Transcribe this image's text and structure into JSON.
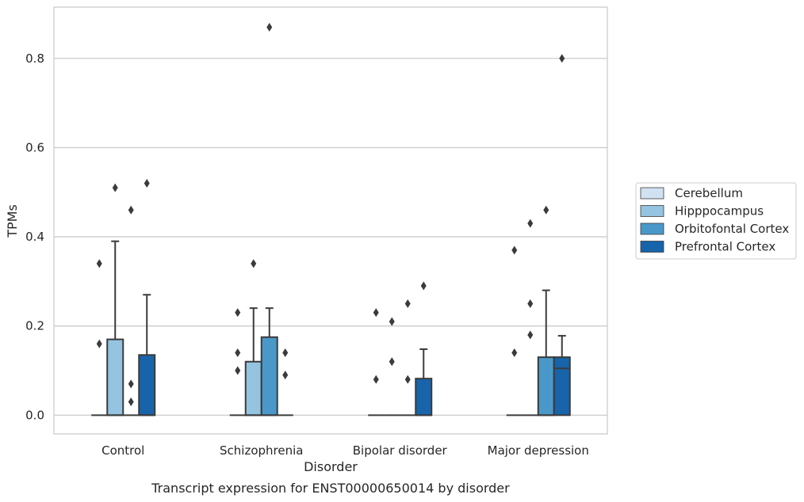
{
  "chart_data": {
    "type": "box",
    "caption": "Transcript expression for ENST00000650014 by disorder",
    "xlabel": "Disorder",
    "ylabel": "TPMs",
    "ylim": [
      -0.042,
      0.915
    ],
    "yticks": [
      "0.0",
      "0.2",
      "0.4",
      "0.6",
      "0.8"
    ],
    "ytick_values": [
      0.0,
      0.2,
      0.4,
      0.6,
      0.8
    ],
    "grid": "horizontal",
    "legend_position": "right",
    "categories": [
      "Control",
      "Schizophrenia",
      "Bipolar disorder",
      "Major depression"
    ],
    "series": [
      {
        "name": "Cerebellum",
        "color": "#d0e1f2",
        "boxes": [
          {
            "q1": 0,
            "median": 0,
            "q3": 0,
            "whisker_low": 0,
            "whisker_high": 0,
            "outliers": [
              0.16,
              0.34
            ]
          },
          {
            "q1": 0,
            "median": 0,
            "q3": 0,
            "whisker_low": 0,
            "whisker_high": 0,
            "outliers": [
              0.1,
              0.14,
              0.23
            ]
          },
          {
            "q1": 0,
            "median": 0,
            "q3": 0,
            "whisker_low": 0,
            "whisker_high": 0,
            "outliers": [
              0.08,
              0.23
            ]
          },
          {
            "q1": 0,
            "median": 0,
            "q3": 0,
            "whisker_low": 0,
            "whisker_high": 0,
            "outliers": [
              0.14,
              0.37
            ]
          }
        ]
      },
      {
        "name": "Hipppocampus",
        "color": "#94c4df",
        "boxes": [
          {
            "q1": 0,
            "median": 0,
            "q3": 0.17,
            "whisker_low": 0,
            "whisker_high": 0.39,
            "outliers": [
              0.51
            ]
          },
          {
            "q1": 0,
            "median": 0,
            "q3": 0.12,
            "whisker_low": 0,
            "whisker_high": 0.24,
            "outliers": [
              0.34
            ]
          },
          {
            "q1": 0,
            "median": 0,
            "q3": 0,
            "whisker_low": 0,
            "whisker_high": 0,
            "outliers": [
              0.12,
              0.21
            ]
          },
          {
            "q1": 0,
            "median": 0,
            "q3": 0,
            "whisker_low": 0,
            "whisker_high": 0,
            "outliers": [
              0.18,
              0.25,
              0.43
            ]
          }
        ]
      },
      {
        "name": "Orbitofontal Cortex",
        "color": "#4a98c9",
        "boxes": [
          {
            "q1": 0,
            "median": 0,
            "q3": 0,
            "whisker_low": 0,
            "whisker_high": 0,
            "outliers": [
              0.03,
              0.07,
              0.46
            ]
          },
          {
            "q1": 0,
            "median": 0,
            "q3": 0.175,
            "whisker_low": 0,
            "whisker_high": 0.24,
            "outliers": [
              0.87
            ]
          },
          {
            "q1": 0,
            "median": 0,
            "q3": 0,
            "whisker_low": 0,
            "whisker_high": 0,
            "outliers": [
              0.08,
              0.25
            ]
          },
          {
            "q1": 0,
            "median": 0,
            "q3": 0.13,
            "whisker_low": 0,
            "whisker_high": 0.28,
            "outliers": [
              0.46
            ]
          }
        ]
      },
      {
        "name": "Prefrontal Cortex",
        "color": "#1764ab",
        "boxes": [
          {
            "q1": 0,
            "median": 0,
            "q3": 0.135,
            "whisker_low": 0,
            "whisker_high": 0.27,
            "outliers": [
              0.52
            ]
          },
          {
            "q1": 0,
            "median": 0,
            "q3": 0,
            "whisker_low": 0,
            "whisker_high": 0,
            "outliers": [
              0.09,
              0.14
            ]
          },
          {
            "q1": 0,
            "median": 0,
            "q3": 0.082,
            "whisker_low": 0,
            "whisker_high": 0.148,
            "outliers": [
              0.29
            ]
          },
          {
            "q1": 0,
            "median": 0.105,
            "q3": 0.13,
            "whisker_low": 0,
            "whisker_high": 0.178,
            "outliers": [
              0.8
            ]
          }
        ]
      }
    ]
  }
}
